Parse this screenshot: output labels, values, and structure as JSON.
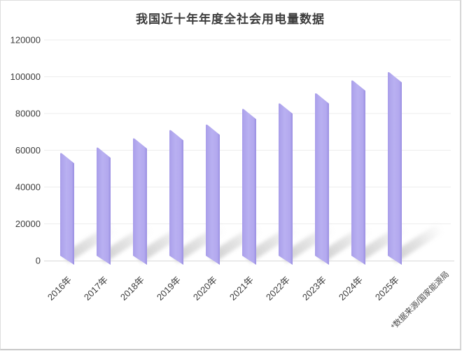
{
  "chart_data": {
    "type": "bar",
    "title": "我国近十年年度全社会用电量数据",
    "categories": [
      "2016年",
      "2017年",
      "2018年",
      "2019年",
      "2020年",
      "2021年",
      "2022年",
      "2023年",
      "2024年",
      "2025年"
    ],
    "values": [
      59000,
      62000,
      67000,
      71500,
      74500,
      83000,
      86000,
      91500,
      98500,
      103000
    ],
    "xlabel": "",
    "ylabel": "",
    "ylim": [
      0,
      120000
    ],
    "yticks": [
      0,
      20000,
      40000,
      60000,
      80000,
      100000,
      120000
    ],
    "grid": "horizontal",
    "legend": "none",
    "source_note": "*数据来源/国家能源局",
    "bar_color": "#b3a9ee",
    "bar_edge_color": "#9c90e2",
    "gridline_color": "#ededed",
    "axis_line_color": "#d9d9d9",
    "tick_label_color": "#3d3d3d",
    "title_color": "#3c3c3c",
    "shadow_color": "#8c8c8c"
  }
}
